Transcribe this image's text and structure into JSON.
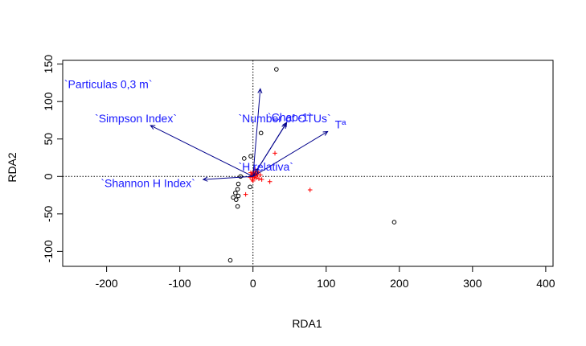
{
  "chart_data": {
    "type": "scatter",
    "title": "",
    "xlabel": "RDA1",
    "ylabel": "RDA2",
    "xlim": [
      -260,
      410
    ],
    "ylim": [
      -120,
      155
    ],
    "xticks": [
      -200,
      -100,
      0,
      100,
      200,
      300,
      400
    ],
    "yticks": [
      -100,
      -50,
      0,
      50,
      100,
      150
    ],
    "xtick_labels": [
      "-200",
      "-100",
      "0",
      "100",
      "200",
      "300",
      "400"
    ],
    "ytick_labels": [
      "-100",
      "-50",
      "0",
      "50",
      "100",
      "150"
    ],
    "reference_lines": {
      "x": 0,
      "y": 0,
      "style": "dotted"
    },
    "colors": {
      "sites": "#000000",
      "species": "#ff0000",
      "vectors": "#00008b",
      "vector_labels": "#1a1aff"
    },
    "sites": [
      {
        "x": 32,
        "y": 143
      },
      {
        "x": 11,
        "y": 58
      },
      {
        "x": -3,
        "y": 27
      },
      {
        "x": -12,
        "y": 24
      },
      {
        "x": -17,
        "y": 0
      },
      {
        "x": -20,
        "y": -10
      },
      {
        "x": -21,
        "y": -17
      },
      {
        "x": -4,
        "y": -14
      },
      {
        "x": -24,
        "y": -22
      },
      {
        "x": -20,
        "y": -26
      },
      {
        "x": -27,
        "y": -28
      },
      {
        "x": -23,
        "y": -31
      },
      {
        "x": -21,
        "y": -40
      },
      {
        "x": -31,
        "y": -112
      },
      {
        "x": 193,
        "y": -61
      }
    ],
    "species": [
      {
        "x": 0,
        "y": 0
      },
      {
        "x": 2,
        "y": 3
      },
      {
        "x": -2,
        "y": 2
      },
      {
        "x": 4,
        "y": -2
      },
      {
        "x": -1,
        "y": -4
      },
      {
        "x": 1,
        "y": 6
      },
      {
        "x": 6,
        "y": 2
      },
      {
        "x": -4,
        "y": -1
      },
      {
        "x": 3,
        "y": 9
      },
      {
        "x": 8,
        "y": -3
      },
      {
        "x": 0,
        "y": -6
      },
      {
        "x": -3,
        "y": 5
      },
      {
        "x": 5,
        "y": 4
      },
      {
        "x": 12,
        "y": -4
      },
      {
        "x": 2,
        "y": -1
      },
      {
        "x": -1,
        "y": 1
      },
      {
        "x": 7,
        "y": 6
      },
      {
        "x": 10,
        "y": 2
      },
      {
        "x": 1,
        "y": 4
      },
      {
        "x": 4,
        "y": 1
      },
      {
        "x": 30,
        "y": 31
      },
      {
        "x": 23,
        "y": -7
      },
      {
        "x": -10,
        "y": -24
      },
      {
        "x": 78,
        "y": -18
      }
    ],
    "vectors": [
      {
        "label": "`Particulas 0,3 m`",
        "x": 10,
        "y": 117
      },
      {
        "label": "`Simpson Index`",
        "x": -140,
        "y": 68
      },
      {
        "label": "`Number of OTUs`",
        "x": 45,
        "y": 70
      },
      {
        "label": "`Chao-1`",
        "x": 46,
        "y": 72
      },
      {
        "label": "Tª",
        "x": 102,
        "y": 60
      },
      {
        "label": "`H relativa`",
        "x": 7,
        "y": 11
      },
      {
        "label": "`Shannon H Index`",
        "x": -68,
        "y": -4
      }
    ],
    "vector_labels": [
      {
        "text": "`Particulas 0,3 m`",
        "x": -258,
        "y": 122
      },
      {
        "text": "`Simpson Index`",
        "x": -216,
        "y": 76
      },
      {
        "text": "`Number of OTUs`",
        "x": -20,
        "y": 76
      },
      {
        "text": "`Chao-1`",
        "x": 20,
        "y": 78
      },
      {
        "text": "Tª",
        "x": 112,
        "y": 68
      },
      {
        "text": "`H relativa`",
        "x": -20,
        "y": 12
      },
      {
        "text": "`Shannon H Index`",
        "x": -208,
        "y": -10
      }
    ]
  }
}
